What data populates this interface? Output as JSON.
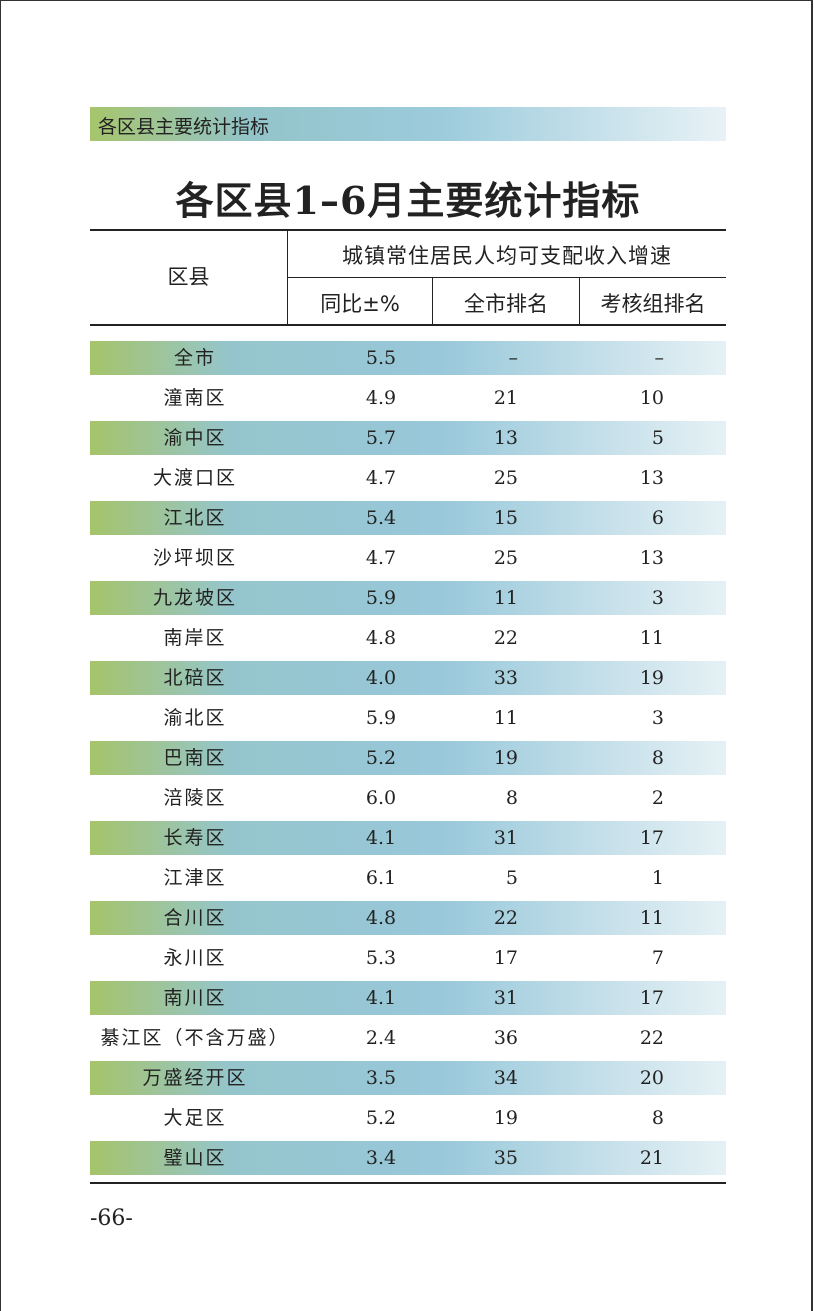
{
  "header": {
    "section": "各区县主要统计指标",
    "title": "各区县1–6月主要统计指标"
  },
  "table": {
    "columns": {
      "district": "区县",
      "group": "城镇常住居民人均可支配收入增速",
      "sub": [
        "同比±%",
        "全市排名",
        "考核组排名"
      ]
    },
    "rows": [
      [
        "全市",
        "5.5",
        "–",
        "–"
      ],
      [
        "潼南区",
        "4.9",
        "21",
        "10"
      ],
      [
        "渝中区",
        "5.7",
        "13",
        "5"
      ],
      [
        "大渡口区",
        "4.7",
        "25",
        "13"
      ],
      [
        "江北区",
        "5.4",
        "15",
        "6"
      ],
      [
        "沙坪坝区",
        "4.7",
        "25",
        "13"
      ],
      [
        "九龙坡区",
        "5.9",
        "11",
        "3"
      ],
      [
        "南岸区",
        "4.8",
        "22",
        "11"
      ],
      [
        "北碚区",
        "4.0",
        "33",
        "19"
      ],
      [
        "渝北区",
        "5.9",
        "11",
        "3"
      ],
      [
        "巴南区",
        "5.2",
        "19",
        "8"
      ],
      [
        "涪陵区",
        "6.0",
        "8",
        "2"
      ],
      [
        "长寿区",
        "4.1",
        "31",
        "17"
      ],
      [
        "江津区",
        "6.1",
        "5",
        "1"
      ],
      [
        "合川区",
        "4.8",
        "22",
        "11"
      ],
      [
        "永川区",
        "5.3",
        "17",
        "7"
      ],
      [
        "南川区",
        "4.1",
        "31",
        "17"
      ],
      [
        "綦江区（不含万盛）",
        "2.4",
        "36",
        "22"
      ],
      [
        "万盛经开区",
        "3.5",
        "34",
        "20"
      ],
      [
        "大足区",
        "5.2",
        "19",
        "8"
      ],
      [
        "璧山区",
        "3.4",
        "35",
        "21"
      ]
    ]
  },
  "footer": {
    "page_number": "-66-"
  }
}
